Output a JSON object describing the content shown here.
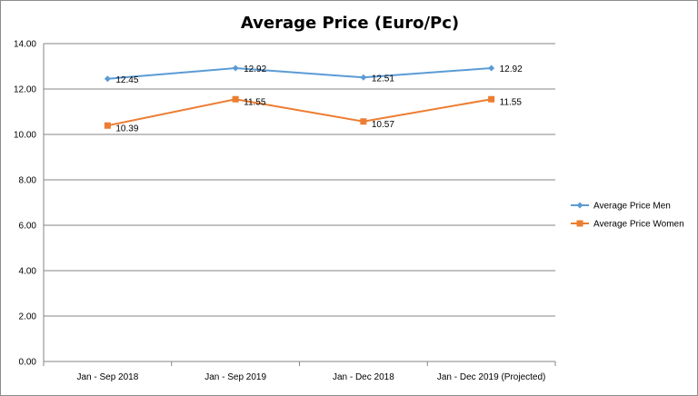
{
  "colors": {
    "series_men": "#5B9BD5",
    "series_women": "#ED7D31",
    "gridline": "#868686",
    "axis": "#868686"
  },
  "chart_data": {
    "type": "line",
    "title": "Average Price (Euro/Pc)",
    "categories": [
      "Jan - Sep 2018",
      "Jan - Sep 2019",
      "Jan - Dec 2018",
      "Jan - Dec 2019 (Projected)"
    ],
    "series": [
      {
        "name": "Average Price Men",
        "values": [
          12.45,
          12.92,
          12.51,
          12.92
        ],
        "labels": [
          "12.45",
          "12.92",
          "12.51",
          "12.92"
        ],
        "marker": "diamond",
        "color": "#5B9BD5"
      },
      {
        "name": "Average Price Women",
        "values": [
          10.39,
          11.55,
          10.57,
          11.55
        ],
        "labels": [
          "10.39",
          "11.55",
          "10.57",
          "11.55"
        ],
        "marker": "square",
        "color": "#ED7D31"
      }
    ],
    "ylim": [
      0,
      14
    ],
    "yticks": [
      0,
      2,
      4,
      6,
      8,
      10,
      12,
      14
    ],
    "ytick_labels": [
      "0.00",
      "2.00",
      "4.00",
      "6.00",
      "8.00",
      "10.00",
      "12.00",
      "14.00"
    ],
    "grid": true,
    "legend_position": "right"
  }
}
